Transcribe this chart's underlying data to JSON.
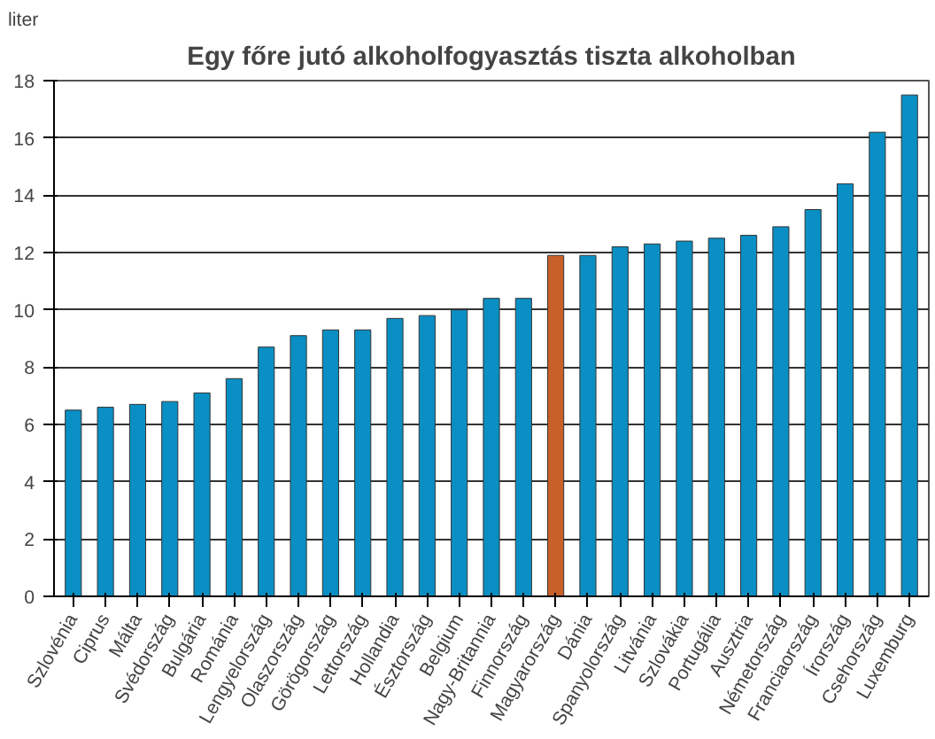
{
  "chart_data": {
    "type": "bar",
    "title": "Egy főre jutó alkoholfogyasztás tiszta alkoholban",
    "ylabel": "liter",
    "categories": [
      "Szlovénia",
      "Ciprus",
      "Málta",
      "Svédország",
      "Bulgária",
      "Románia",
      "Lengyelország",
      "Olaszország",
      "Görögország",
      "Lettország",
      "Hollandia",
      "Észtország",
      "Belgium",
      "Nagy-Britannia",
      "Finnország",
      "Magyarország",
      "Dánia",
      "Spanyolország",
      "Litvánia",
      "Szlovákia",
      "Portugália",
      "Ausztria",
      "Németország",
      "Franciaország",
      "Írország",
      "Csehország",
      "Luxemburg"
    ],
    "values": [
      6.5,
      6.6,
      6.7,
      6.8,
      7.1,
      7.6,
      8.7,
      9.1,
      9.3,
      9.3,
      9.7,
      9.8,
      10.0,
      10.4,
      10.4,
      11.9,
      11.9,
      12.2,
      12.3,
      12.4,
      12.5,
      12.6,
      12.9,
      13.5,
      14.4,
      16.2,
      17.5
    ],
    "colors": [
      "#0a8fc4",
      "#0a8fc4",
      "#0a8fc4",
      "#0a8fc4",
      "#0a8fc4",
      "#0a8fc4",
      "#0a8fc4",
      "#0a8fc4",
      "#0a8fc4",
      "#0a8fc4",
      "#0a8fc4",
      "#0a8fc4",
      "#0a8fc4",
      "#0a8fc4",
      "#0a8fc4",
      "#c8602a",
      "#0a8fc4",
      "#0a8fc4",
      "#0a8fc4",
      "#0a8fc4",
      "#0a8fc4",
      "#0a8fc4",
      "#0a8fc4",
      "#0a8fc4",
      "#0a8fc4",
      "#0a8fc4",
      "#0a8fc4"
    ],
    "ylim": [
      0,
      18
    ],
    "yticks": [
      0,
      2,
      4,
      6,
      8,
      10,
      12,
      14,
      16,
      18
    ],
    "grid": "y"
  }
}
